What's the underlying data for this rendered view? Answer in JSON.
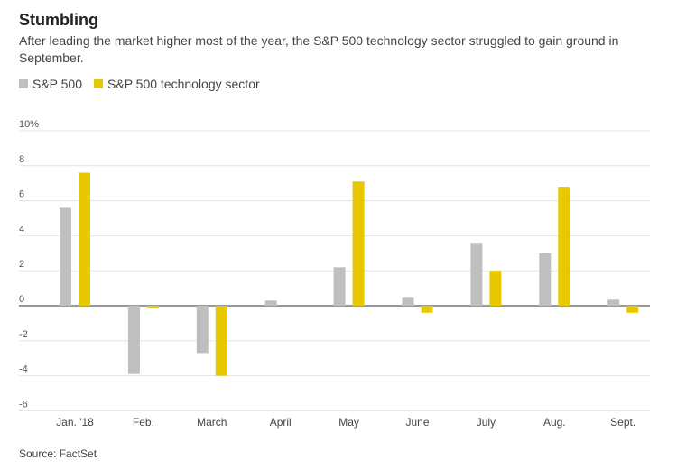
{
  "title": "Stumbling",
  "subtitle": "After leading the market higher most of the year, the S&P 500 technology sector struggled to gain ground in September.",
  "source": "Source: FactSet",
  "legend": [
    {
      "name": "S&P 500",
      "color": "#bfbfbf"
    },
    {
      "name": "S&P 500 technology sector",
      "color": "#e8c800"
    }
  ],
  "chart_data": {
    "type": "bar",
    "categories": [
      "Jan. '18",
      "Feb.",
      "March",
      "April",
      "May",
      "June",
      "July",
      "Aug.",
      "Sept."
    ],
    "series": [
      {
        "name": "S&P 500",
        "color": "#bfbfbf",
        "values": [
          5.6,
          -3.9,
          -2.7,
          0.3,
          2.2,
          0.5,
          3.6,
          3.0,
          0.4
        ]
      },
      {
        "name": "S&P 500 technology sector",
        "color": "#e8c800",
        "values": [
          7.6,
          -0.1,
          -4.0,
          0.0,
          7.1,
          -0.4,
          2.0,
          6.8,
          -0.4
        ]
      }
    ],
    "yticks": [
      "10%",
      "8",
      "6",
      "4",
      "2",
      "0",
      "-2",
      "-4",
      "-6"
    ],
    "ytick_values": [
      10,
      8,
      6,
      4,
      2,
      0,
      -2,
      -4,
      -6
    ],
    "ylim": [
      -6,
      10
    ],
    "grid": true,
    "legend_position": "top-left"
  }
}
